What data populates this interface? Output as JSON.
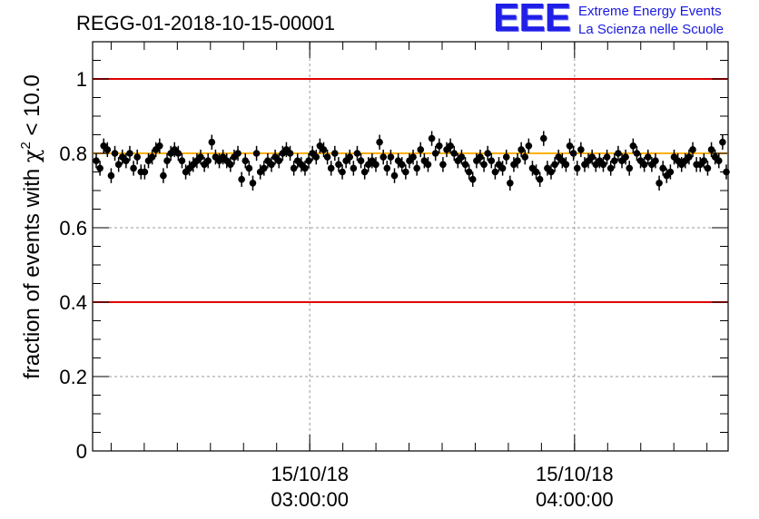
{
  "header": {
    "run_title": "REGG-01-2018-10-15-00001"
  },
  "logo": {
    "letters": "EEE",
    "line1": "Extreme Energy Events",
    "line2": "La Scienza nelle Scuole",
    "color": "#1f1fe6"
  },
  "chart_data": {
    "type": "scatter",
    "title": "REGG-01-2018-10-15-00001",
    "ylabel_prefix": "fraction of events with ",
    "ylabel_chi": "χ",
    "ylabel_exp": "2",
    "ylabel_suffix": " < 10.0",
    "xlabel": "",
    "ylim": [
      0,
      1.1
    ],
    "x_range_hours": [
      2.18,
      4.58
    ],
    "y_ticks": [
      "0",
      "0.2",
      "0.4",
      "0.6",
      "0.8",
      "1"
    ],
    "x_ticks": [
      {
        "date": "15/10/18",
        "time": "03:00:00",
        "hour": 3.0
      },
      {
        "date": "15/10/18",
        "time": "04:00:00",
        "hour": 4.0
      }
    ],
    "grid": true,
    "reference_lines": [
      {
        "y": 1.0,
        "color": "#e00000"
      },
      {
        "y": 0.4,
        "color": "#e00000"
      },
      {
        "y": 0.8,
        "color": "#ffb000"
      }
    ],
    "error_bar": 0.02,
    "points": [
      0.78,
      0.76,
      0.82,
      0.81,
      0.74,
      0.8,
      0.77,
      0.79,
      0.78,
      0.8,
      0.76,
      0.79,
      0.75,
      0.75,
      0.78,
      0.79,
      0.81,
      0.82,
      0.74,
      0.78,
      0.8,
      0.81,
      0.8,
      0.78,
      0.75,
      0.76,
      0.77,
      0.78,
      0.79,
      0.77,
      0.78,
      0.83,
      0.79,
      0.78,
      0.79,
      0.78,
      0.77,
      0.79,
      0.8,
      0.73,
      0.78,
      0.76,
      0.72,
      0.8,
      0.75,
      0.76,
      0.78,
      0.77,
      0.79,
      0.78,
      0.8,
      0.81,
      0.8,
      0.76,
      0.78,
      0.77,
      0.76,
      0.78,
      0.8,
      0.79,
      0.82,
      0.81,
      0.79,
      0.76,
      0.8,
      0.77,
      0.75,
      0.78,
      0.79,
      0.76,
      0.8,
      0.78,
      0.75,
      0.77,
      0.78,
      0.77,
      0.83,
      0.79,
      0.76,
      0.79,
      0.74,
      0.78,
      0.77,
      0.75,
      0.78,
      0.79,
      0.76,
      0.81,
      0.78,
      0.77,
      0.84,
      0.8,
      0.82,
      0.77,
      0.81,
      0.82,
      0.8,
      0.78,
      0.79,
      0.77,
      0.75,
      0.73,
      0.78,
      0.79,
      0.77,
      0.8,
      0.78,
      0.75,
      0.77,
      0.76,
      0.79,
      0.72,
      0.77,
      0.78,
      0.81,
      0.79,
      0.82,
      0.76,
      0.75,
      0.73,
      0.84,
      0.76,
      0.75,
      0.77,
      0.79,
      0.78,
      0.77,
      0.82,
      0.8,
      0.76,
      0.81,
      0.77,
      0.78,
      0.79,
      0.77,
      0.78,
      0.77,
      0.79,
      0.76,
      0.78,
      0.8,
      0.78,
      0.79,
      0.76,
      0.82,
      0.8,
      0.78,
      0.77,
      0.79,
      0.77,
      0.78,
      0.72,
      0.76,
      0.74,
      0.75,
      0.79,
      0.78,
      0.77,
      0.78,
      0.79,
      0.81,
      0.77,
      0.77,
      0.78,
      0.76,
      0.81,
      0.79,
      0.78,
      0.83,
      0.75
    ]
  }
}
